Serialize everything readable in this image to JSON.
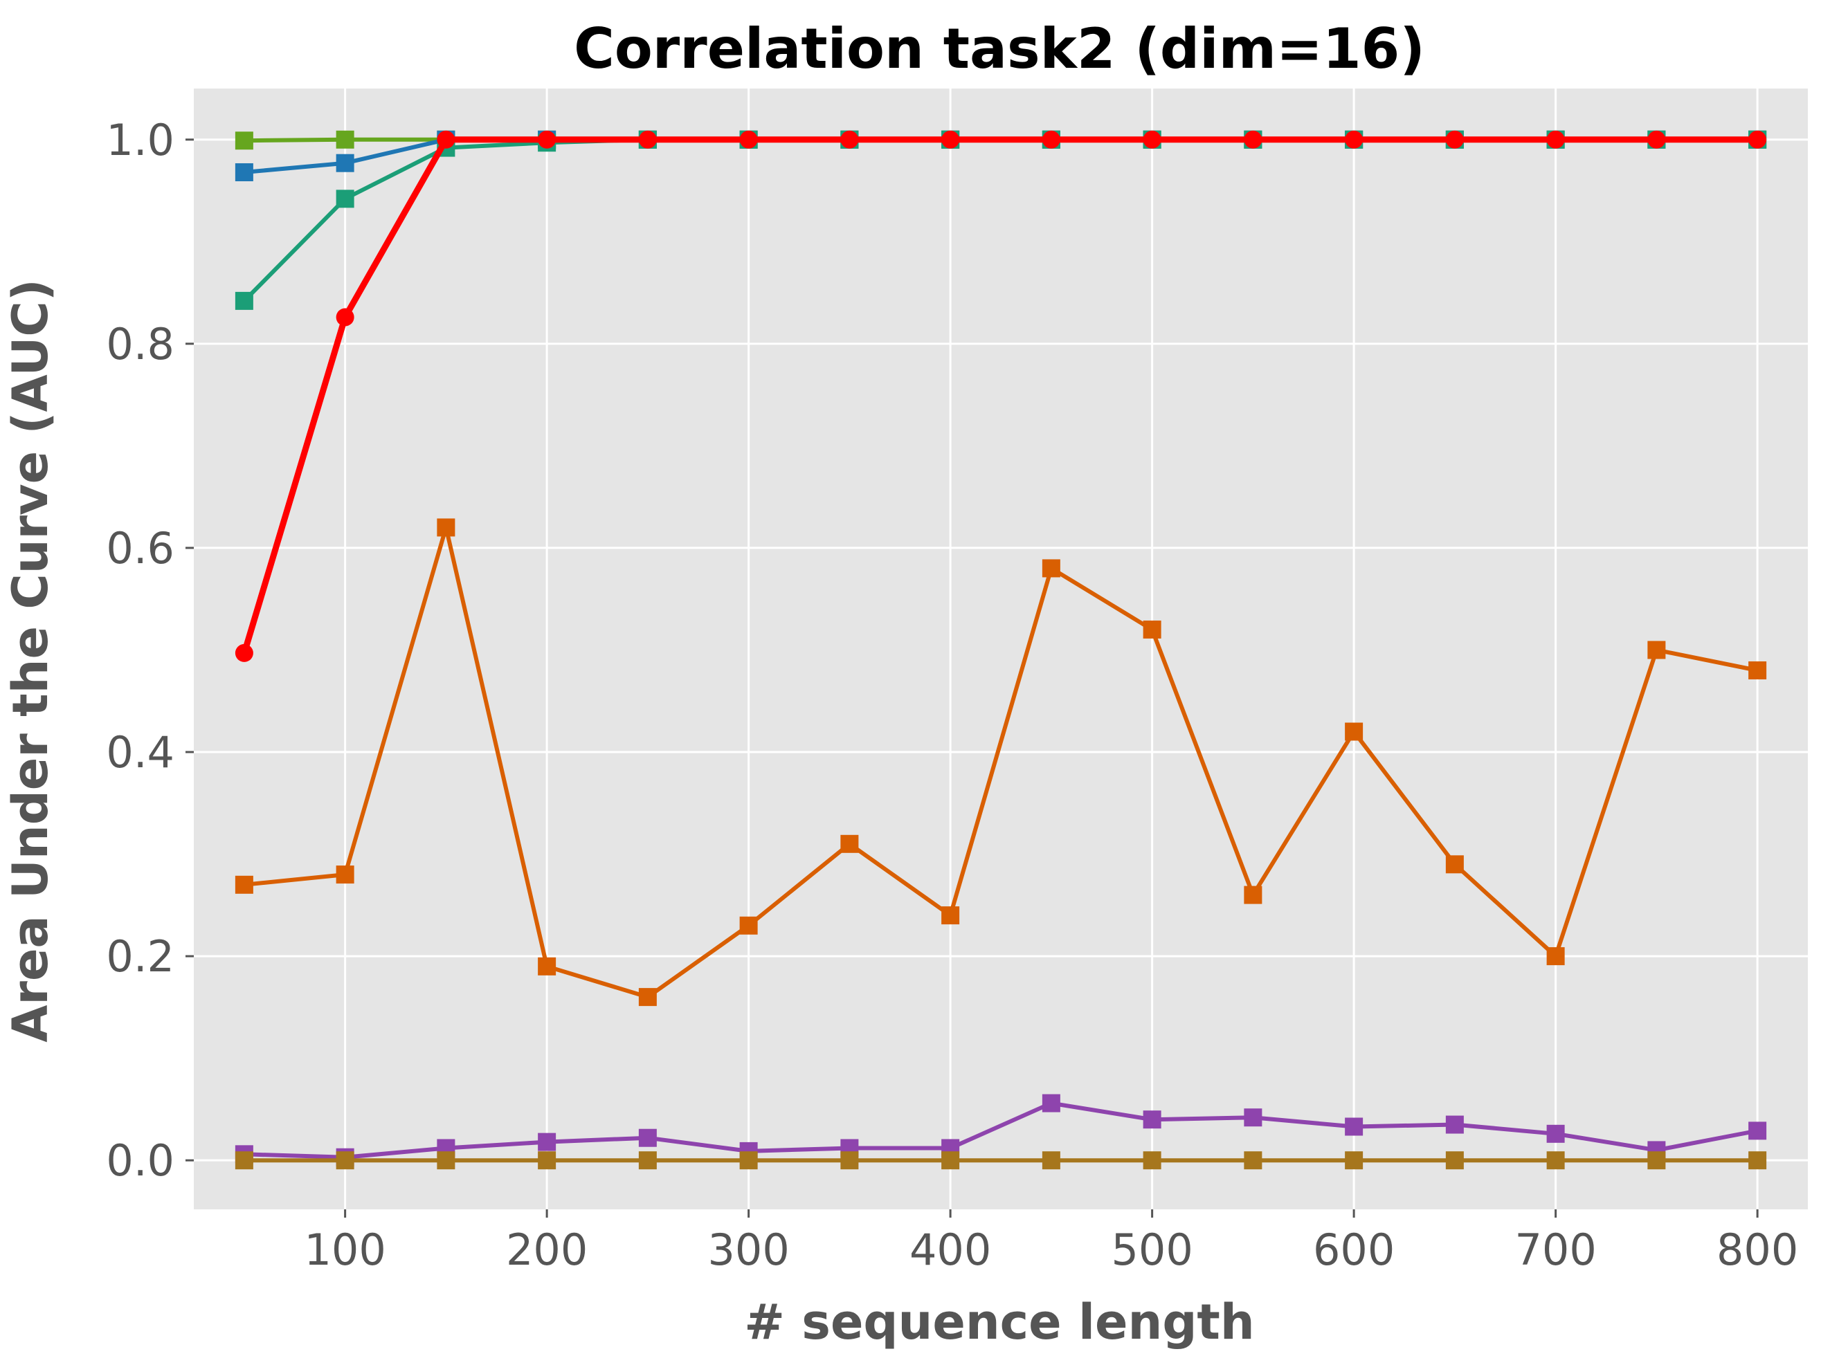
{
  "chart_data": {
    "type": "line",
    "title": "Correlation task2 (dim=16)",
    "xlabel": "# sequence length",
    "ylabel": "Area Under the Curve (AUC)",
    "xlim": [
      25,
      825
    ],
    "ylim": [
      -0.048,
      1.05
    ],
    "grid": true,
    "x": [
      50,
      100,
      150,
      200,
      250,
      300,
      350,
      400,
      450,
      500,
      550,
      600,
      650,
      700,
      750,
      800
    ],
    "xticks": [
      100,
      200,
      300,
      400,
      500,
      600,
      700,
      800
    ],
    "xtick_labels": [
      "100",
      "200",
      "300",
      "400",
      "500",
      "600",
      "700",
      "800"
    ],
    "yticks": [
      0.0,
      0.2,
      0.4,
      0.6,
      0.8,
      1.0
    ],
    "ytick_labels": [
      "0.0",
      "0.2",
      "0.4",
      "0.6",
      "0.8",
      "1.0"
    ],
    "series": [
      {
        "color": "#66a61e",
        "marker": "square",
        "values": [
          0.999,
          1.0,
          1.0,
          1.0,
          1.0,
          1.0,
          1.0,
          1.0,
          1.0,
          1.0,
          1.0,
          1.0,
          1.0,
          1.0,
          1.0,
          1.0
        ]
      },
      {
        "color": "#1f77b4",
        "marker": "square",
        "values": [
          0.968,
          0.977,
          1.0,
          1.0,
          1.0,
          1.0,
          1.0,
          1.0,
          1.0,
          1.0,
          1.0,
          1.0,
          1.0,
          1.0,
          1.0,
          1.0
        ]
      },
      {
        "color": "#1b9e77",
        "marker": "square",
        "values": [
          0.842,
          0.942,
          0.992,
          0.997,
          1.0,
          1.0,
          1.0,
          1.0,
          1.0,
          1.0,
          1.0,
          1.0,
          1.0,
          1.0,
          1.0,
          1.0
        ]
      },
      {
        "color": "#d95f02",
        "marker": "square",
        "values": [
          0.27,
          0.28,
          0.62,
          0.19,
          0.16,
          0.23,
          0.31,
          0.24,
          0.58,
          0.52,
          0.26,
          0.42,
          0.29,
          0.2,
          0.5,
          0.48
        ]
      },
      {
        "color": "#8e44ad",
        "marker": "square",
        "values": [
          0.006,
          0.003,
          0.012,
          0.018,
          0.022,
          0.009,
          0.012,
          0.012,
          0.056,
          0.04,
          0.042,
          0.033,
          0.035,
          0.026,
          0.01,
          0.029
        ]
      },
      {
        "color": "#a6761d",
        "marker": "square",
        "values": [
          0.0,
          0.0,
          0.0,
          0.0,
          0.0,
          0.0,
          0.0,
          0.0,
          0.0,
          0.0,
          0.0,
          0.0,
          0.0,
          0.0,
          0.0,
          0.0
        ]
      },
      {
        "color": "#ff0000",
        "marker": "circle",
        "values": [
          0.497,
          0.826,
          1.0,
          1.0,
          1.0,
          1.0,
          1.0,
          1.0,
          1.0,
          1.0,
          1.0,
          1.0,
          1.0,
          1.0,
          1.0,
          1.0
        ]
      }
    ],
    "colors": {
      "background": "#e5e5e5",
      "grid": "#ffffff",
      "text": "#555555",
      "title": "#000000"
    }
  }
}
